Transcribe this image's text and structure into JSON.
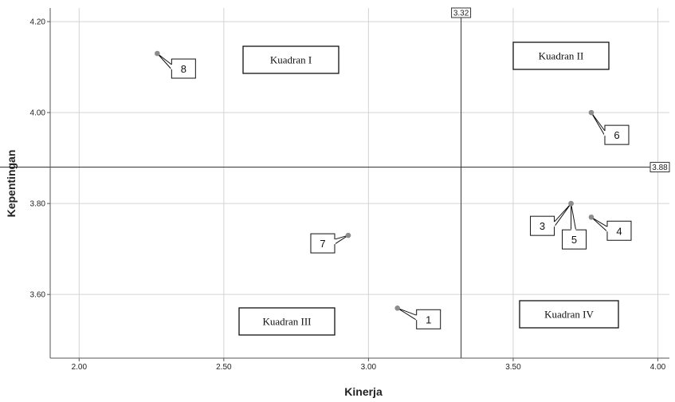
{
  "chart_data": {
    "type": "scatter",
    "title": "",
    "xlabel": "Kinerja",
    "ylabel": "Kepentingan",
    "xlim": [
      1.9,
      4.04
    ],
    "ylim": [
      3.46,
      4.23
    ],
    "x_ticks": [
      "2.00",
      "2.50",
      "3.00",
      "3.50",
      "4.00"
    ],
    "y_ticks": [
      "3.60",
      "3.80",
      "4.00",
      "4.20"
    ],
    "grid": true,
    "points": [
      {
        "label": "1",
        "x": 3.1,
        "y": 3.57
      },
      {
        "label": "3",
        "x": 3.7,
        "y": 3.8
      },
      {
        "label": "5",
        "x": 3.7,
        "y": 3.8
      },
      {
        "label": "4",
        "x": 3.77,
        "y": 3.77
      },
      {
        "label": "6",
        "x": 3.77,
        "y": 4.0
      },
      {
        "label": "7",
        "x": 2.93,
        "y": 3.73
      },
      {
        "label": "8",
        "x": 2.27,
        "y": 4.13
      }
    ],
    "reference_lines": [
      {
        "axis": "x",
        "value": 3.32,
        "label": "3.32"
      },
      {
        "axis": "y",
        "value": 3.88,
        "label": "3.88"
      }
    ],
    "quadrant_labels": [
      "Kuadran I",
      "Kuadran II",
      "Kuadran III",
      "Kuadran IV"
    ],
    "colors": {
      "point": "#8c8c8c",
      "grid": "#d4d4d4",
      "reference_line": "#333333"
    }
  }
}
